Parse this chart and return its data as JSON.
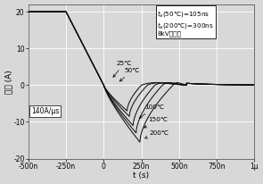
{
  "title": "",
  "xlabel": "t (s)",
  "ylabel": "电流 (A)",
  "xlim_ns": [
    -500,
    1000
  ],
  "ylim": [
    -20,
    22
  ],
  "xticks_ns": [
    -500,
    -250,
    0,
    250,
    500,
    750,
    1000
  ],
  "xtick_labels": [
    "-500n",
    "-250n",
    "0",
    "250n",
    "500n",
    "750n",
    "1μ"
  ],
  "yticks": [
    -20,
    -10,
    0,
    10,
    20
  ],
  "ytick_labels": [
    "-20",
    "-10",
    "0",
    "10",
    "20"
  ],
  "annotation_line1": "$t_a$(50℃)=105ns",
  "annotation_line2": "$t_a$(200℃)=300ns",
  "annotation_line3": "8kV二极管",
  "slope_label": "140A/μs",
  "bg_color": "#d8d8d8",
  "line_color": "#111111",
  "grid_color": "#ffffff",
  "temps": [
    "25℃",
    "50℃",
    "100℃",
    "150℃",
    "200℃"
  ],
  "peak_neg_vals": [
    -7.0,
    -8.5,
    -11.0,
    -13.0,
    -15.5
  ],
  "peak_neg_t_ns": [
    155,
    170,
    195,
    215,
    240
  ],
  "recovery_t_ns": [
    250,
    290,
    340,
    390,
    460
  ],
  "fall_start_ns": -250,
  "zero_cross_ns": 0
}
